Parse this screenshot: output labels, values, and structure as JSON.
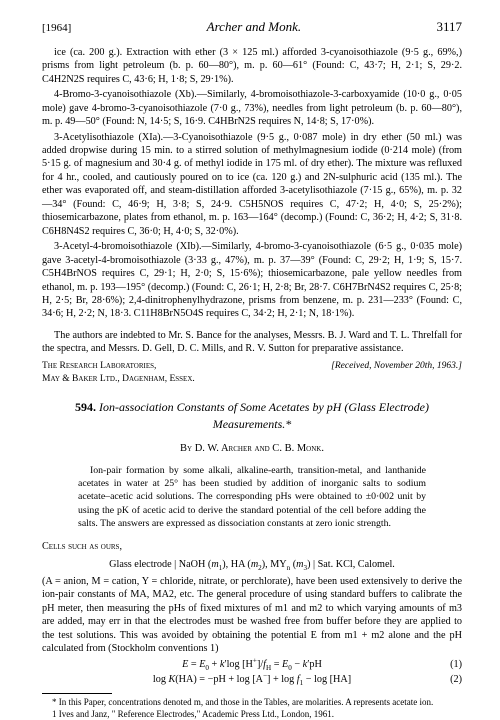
{
  "header": {
    "year": "[1964]",
    "running": "Archer and Monk.",
    "page": "3117"
  },
  "main_prose": [
    "ice (ca. 200 g.). Extraction with ether (3 × 125 ml.) afforded 3-cyanoisothiazole (9·5 g., 69%,) prisms from light petroleum (b. p. 60—80°), m. p. 60—61° (Found: C, 43·7; H, 2·1; S, 29·2. C4H2N2S requires C, 43·6; H, 1·8; S, 29·1%).",
    "4-Bromo-3-cyanoisothiazole (Xb).—Similarly, 4-bromoisothiazole-3-carboxyamide (10·0 g., 0·05 mole) gave 4-bromo-3-cyanoisothiazole (7·0 g., 73%), needles from light petroleum (b. p. 60—80°), m. p. 49—50° (Found: N, 14·5; S, 16·9. C4HBrN2S requires N, 14·8; S, 17·0%).",
    "3-Acetylisothiazole (XIa).—3-Cyanoisothiazole (9·5 g., 0·087 mole) in dry ether (50 ml.) was added dropwise during 15 min. to a stirred solution of methylmagnesium iodide (0·214 mole) (from 5·15 g. of magnesium and 30·4 g. of methyl iodide in 175 ml. of dry ether). The mixture was refluxed for 4 hr., cooled, and cautiously poured on to ice (ca. 120 g.) and 2N-sulphuric acid (135 ml.). The ether was evaporated off, and steam-distillation afforded 3-acetylisothiazole (7·15 g., 65%), m. p. 32—34° (Found: C, 46·9; H, 3·8; S, 24·9. C5H5NOS requires C, 47·2; H, 4·0; S, 25·2%); thiosemicarbazone, plates from ethanol, m. p. 163—164° (decomp.) (Found: C, 36·2; H, 4·2; S, 31·8. C6H8N4S2 requires C, 36·0; H, 4·0; S, 32·0%).",
    "3-Acetyl-4-bromoisothiazole (XIb).—Similarly, 4-bromo-3-cyanoisothiazole (6·5 g., 0·035 mole) gave 3-acetyl-4-bromoisothiazole (3·33 g., 47%), m. p. 37—39° (Found: C, 29·2; H, 1·9; S, 15·7. C5H4BrNOS requires C, 29·1; H, 2·0; S, 15·6%); thiosemicarbazone, pale yellow needles from ethanol, m. p. 193—195° (decomp.) (Found: C, 26·1; H, 2·8; Br, 28·7. C6H7BrN4S2 requires C, 25·8; H, 2·5; Br, 28·6%); 2,4-dinitrophenylhydrazone, prisms from benzene, m. p. 231—233° (Found: C, 34·6; H, 2·2; N, 18·3. C11H8BrN5O4S requires C, 34·2; H, 2·1; N, 18·1%)."
  ],
  "ack": "The authors are indebted to Mr. S. Bance for the analyses, Messrs. B. J. Ward and T. L. Threlfall for the spectra, and Messrs. D. Gell, D. C. Mills, and R. V. Sutton for preparative assistance.",
  "affiliation": {
    "left": "The Research Laboratories,\n    May & Baker Ltd., Dagenham, Essex.",
    "right": "[Received, November 20th, 1963.]"
  },
  "article": {
    "number": "594.",
    "title": "Ion-association Constants of Some Acetates by pH (Glass Electrode) Measurements.*",
    "authors": "By D. W. Archer and C. B. Monk.",
    "abstract": "Ion-pair formation by some alkali, alkaline-earth, transition-metal, and lanthanide acetates in water at 25° has been studied by addition of inorganic salts to sodium acetate–acetic acid solutions. The corresponding pHs were obtained to ±0·002 unit by using the pK of acetic acid to derive the standard potential of the cell before adding the salts. The answers are expressed as dissociation constants at zero ionic strength."
  },
  "body2": {
    "lead": "Cells such as ours,",
    "cell": "Glass electrode | NaOH (m1), HA (m2), MYn (m3) | Sat. KCl, Calomel.",
    "p1": "(A = anion, M = cation, Y = chloride, nitrate, or perchlorate), have been used extensively to derive the ion-pair constants of MA, MA2, etc. The general procedure of using standard buffers to calibrate the pH meter, then measuring the pHs of fixed mixtures of m1 and m2 to which varying amounts of m3 are added, may err in that the electrodes must be washed free from buffer before they are applied to the test solutions. This was avoided by obtaining the potential E from m1 + m2 alone and the pH calculated from (Stockholm conventions 1)",
    "eq1": "E = E0 + k′log [H+]/fH = E0 − k′pH",
    "eq1num": "(1)",
    "eq2": "log K(HA) = −pH + log [A−] + log f1 − log [HA]",
    "eq2num": "(2)"
  },
  "footnotes": {
    "star": "* In this Paper, concentrations denoted m, and those in the Tables, are molarities. A represents acetate ion.",
    "ref1": "1 Ives and Janz, \" Reference Electrodes,\" Academic Press Ltd., London, 1961."
  }
}
